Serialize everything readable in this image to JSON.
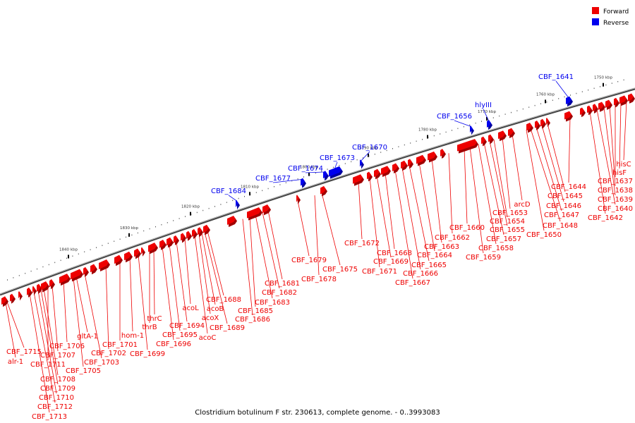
{
  "caption": "Clostridium botulinum F str. 230613, complete genome. - 0..3993083",
  "legend": [
    {
      "label": "Forward",
      "color": "#ee0000"
    },
    {
      "label": "Reverse",
      "color": "#0000ee"
    }
  ],
  "colors": {
    "forward": "#ee0000",
    "forward_dark": "#a00000",
    "reverse": "#0000ee",
    "reverse_dark": "#0000a0",
    "backbone": "#666666"
  },
  "kbp_ticks": [
    "1750 kbp",
    "1760 kbp",
    "1770 kbp",
    "1780 kbp",
    "1790 kbp",
    "1800 kbp",
    "1810 kbp",
    "1820 kbp",
    "1830 kbp",
    "1840 kbp"
  ],
  "reverse_labels": [
    "CBF_1641",
    "hlyIII",
    "CBF_1656",
    "CBF_1670",
    "CBF_1673",
    "CBF_1674",
    "CBF_1677",
    "CBF_1684"
  ],
  "forward_labels": [
    "hisC",
    "hisF",
    "CBF_1637",
    "CBF_1638",
    "CBF_1639",
    "CBF_1640",
    "CBF_1642",
    "CBF_1644",
    "CBF_1645",
    "CBF_1646",
    "CBF_1647",
    "CBF_1648",
    "CBF_1650",
    "arcD",
    "CBF_1653",
    "CBF_1654",
    "CBF_1655",
    "CBF_1657",
    "CBF_1658",
    "CBF_1659",
    "CBF_1660",
    "CBF_1662",
    "CBF_1663",
    "CBF_1664",
    "CBF_1665",
    "CBF_1666",
    "CBF_1667",
    "CBF_1668",
    "CBF_1669",
    "CBF_1671",
    "CBF_1672",
    "CBF_1675",
    "CBF_1678",
    "CBF_1679",
    "CBF_1681",
    "CBF_1682",
    "CBF_1683",
    "CBF_1685",
    "CBF_1686",
    "CBF_1688",
    "acoB",
    "acoX",
    "acoC",
    "CBF_1689",
    "acoL",
    "CBF_1694",
    "CBF_1695",
    "CBF_1696",
    "thrC",
    "thrB",
    "CBF_1699",
    "hom-1",
    "CBF_1701",
    "CBF_1702",
    "gltA-1",
    "CBF_1703",
    "CBF_1705",
    "CBF_1706",
    "CBF_1707",
    "CBF_1711",
    "CBF_1708",
    "CBF_1709",
    "CBF_1710",
    "CBF_1712",
    "CBF_1713",
    "CBF_1715",
    "alr-1"
  ]
}
